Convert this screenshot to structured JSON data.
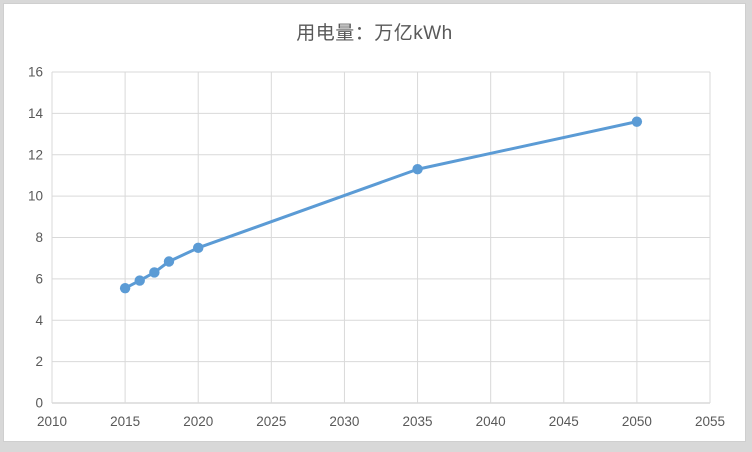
{
  "title": "用电量：万亿kWh",
  "colors": {
    "series": "#5B9BD5",
    "grid": "#D9D9D9",
    "axis_line": "#C6C6C6",
    "axis_text": "#595959",
    "title_text": "#595959",
    "plot_bg": "#FFFFFF",
    "outer_bg": "#D8D8D8"
  },
  "chart_data": {
    "type": "line",
    "title": "用电量：万亿kWh",
    "x": [
      2015,
      2016,
      2017,
      2018,
      2020,
      2035,
      2050
    ],
    "y": [
      5.55,
      5.92,
      6.31,
      6.84,
      7.5,
      11.3,
      13.6
    ],
    "series_name": "用电量",
    "xlabel": "",
    "ylabel": "",
    "xlim": [
      2010,
      2055
    ],
    "ylim": [
      0,
      16
    ],
    "xticks": [
      2010,
      2015,
      2020,
      2025,
      2030,
      2035,
      2040,
      2045,
      2050,
      2055
    ],
    "yticks": [
      0,
      2,
      4,
      6,
      8,
      10,
      12,
      14,
      16
    ],
    "grid": true,
    "legend": false,
    "marker": "circle"
  }
}
